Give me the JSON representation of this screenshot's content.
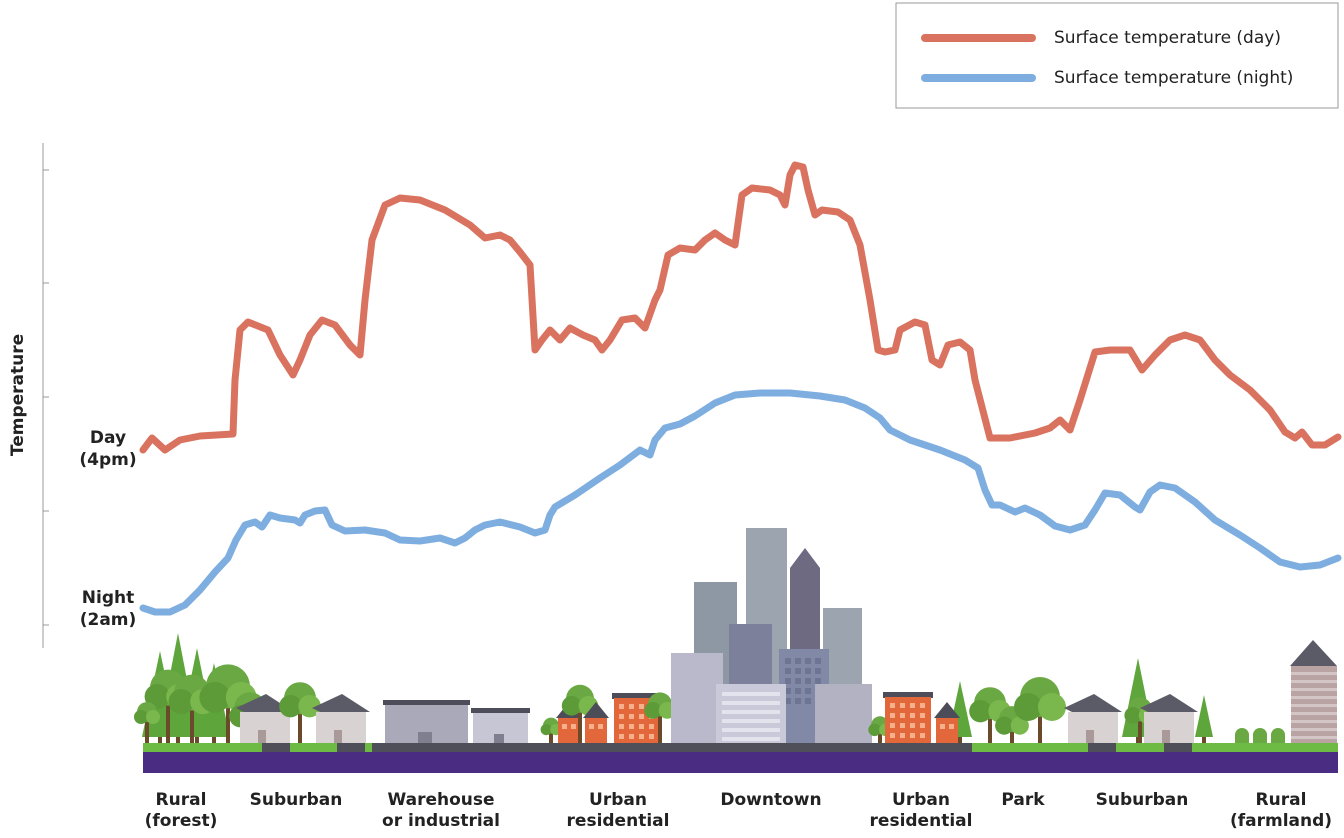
{
  "chart_data": {
    "type": "line",
    "y_label": "Temperature",
    "annotations": [
      [
        "Day",
        "(4pm)"
      ],
      [
        "Night",
        "(2am)"
      ]
    ],
    "categories": [
      [
        "Rural",
        "(forest)"
      ],
      [
        "Suburban"
      ],
      [
        "Warehouse",
        "or industrial"
      ],
      [
        "Urban",
        "residential"
      ],
      [
        "Downtown"
      ],
      [
        "Urban",
        "residential"
      ],
      [
        "Park"
      ],
      [
        "Suburban"
      ],
      [
        "Rural",
        "(farmland)"
      ]
    ],
    "xlim": [
      0,
      1195
    ],
    "ylim": [
      -23,
      482
    ],
    "yticks": [
      0,
      114,
      228,
      342,
      455
    ],
    "legend": "top-right",
    "series": [
      {
        "name": "Surface temperature (day)",
        "color": "#d9735f",
        "x": [
          0,
          9,
          22,
          37,
          57,
          90,
          92,
          97,
          105,
          125,
          137,
          150,
          157,
          167,
          179,
          192,
          207,
          217,
          222,
          229,
          242,
          257,
          277,
          302,
          327,
          342,
          357,
          367,
          377,
          387,
          392,
          399,
          407,
          417,
          427,
          440,
          452,
          459,
          467,
          479,
          492,
          502,
          512,
          517,
          525,
          537,
          552,
          562,
          572,
          582,
          592,
          599,
          609,
          627,
          637,
          642,
          647,
          652,
          660,
          665,
          672,
          679,
          695,
          707,
          717,
          727,
          735,
          742,
          752,
          757,
          772,
          782,
          789,
          797,
          805,
          817,
          827,
          832,
          847,
          867,
          892,
          907,
          917,
          927,
          937,
          952,
          967,
          987,
          999,
          1012,
          1027,
          1042,
          1057,
          1072,
          1087,
          1107,
          1127,
          1142,
          1152,
          1159,
          1169,
          1182,
          1195
        ],
        "values": [
          175,
          187,
          175,
          185,
          189,
          191,
          245,
          295,
          303,
          295,
          270,
          250,
          265,
          290,
          305,
          300,
          280,
          270,
          325,
          385,
          420,
          427,
          425,
          415,
          400,
          387,
          390,
          385,
          373,
          360,
          275,
          285,
          295,
          285,
          297,
          290,
          285,
          275,
          285,
          305,
          307,
          297,
          325,
          335,
          370,
          377,
          375,
          385,
          392,
          385,
          380,
          430,
          437,
          435,
          430,
          420,
          450,
          460,
          458,
          435,
          410,
          415,
          413,
          405,
          380,
          325,
          275,
          273,
          275,
          295,
          303,
          300,
          265,
          260,
          280,
          283,
          275,
          245,
          187,
          187,
          192,
          197,
          205,
          195,
          225,
          273,
          275,
          275,
          255,
          270,
          285,
          290,
          285,
          265,
          250,
          235,
          215,
          193,
          187,
          193,
          180,
          180,
          188
        ]
      },
      {
        "name": "Surface temperature (night)",
        "color": "#7eaedf",
        "x": [
          0,
          12,
          27,
          42,
          57,
          72,
          85,
          93,
          102,
          112,
          119,
          127,
          137,
          152,
          157,
          162,
          172,
          182,
          189,
          202,
          222,
          242,
          257,
          277,
          297,
          312,
          322,
          332,
          342,
          357,
          377,
          392,
          402,
          407,
          412,
          432,
          457,
          477,
          497,
          507,
          512,
          522,
          537,
          552,
          572,
          592,
          617,
          647,
          677,
          702,
          722,
          737,
          747,
          767,
          797,
          822,
          835,
          842,
          849,
          857,
          872,
          882,
          897,
          912,
          927,
          942,
          952,
          962,
          977,
          992,
          997,
          1007,
          1017,
          1032,
          1052,
          1072,
          1097,
          1117,
          1137,
          1157,
          1177,
          1195
        ],
        "values": [
          17,
          13,
          13,
          20,
          35,
          53,
          67,
          85,
          100,
          103,
          98,
          110,
          107,
          105,
          102,
          110,
          114,
          115,
          100,
          94,
          95,
          92,
          85,
          84,
          87,
          82,
          87,
          95,
          100,
          103,
          98,
          92,
          95,
          110,
          118,
          130,
          147,
          160,
          175,
          170,
          185,
          197,
          201,
          209,
          222,
          230,
          232,
          232,
          229,
          225,
          217,
          207,
          195,
          185,
          175,
          165,
          157,
          135,
          120,
          120,
          113,
          117,
          110,
          99,
          95,
          100,
          115,
          132,
          130,
          118,
          115,
          133,
          140,
          137,
          123,
          105,
          90,
          77,
          63,
          58,
          60,
          67
        ]
      }
    ]
  }
}
